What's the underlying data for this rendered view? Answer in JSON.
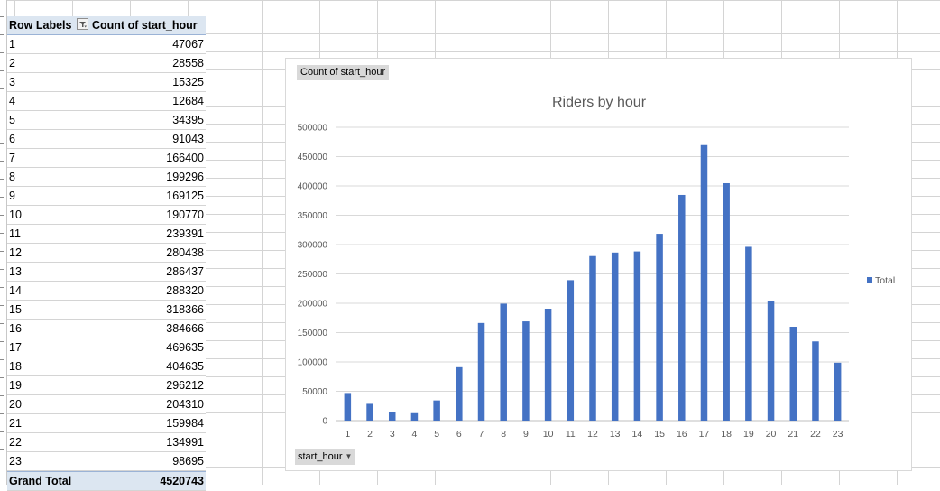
{
  "pivot": {
    "header": {
      "row_labels": "Row Labels",
      "count_label": "Count of start_hour"
    },
    "rows": [
      {
        "label": "1",
        "value": "47067"
      },
      {
        "label": "2",
        "value": "28558"
      },
      {
        "label": "3",
        "value": "15325"
      },
      {
        "label": "4",
        "value": "12684"
      },
      {
        "label": "5",
        "value": "34395"
      },
      {
        "label": "6",
        "value": "91043"
      },
      {
        "label": "7",
        "value": "166400"
      },
      {
        "label": "8",
        "value": "199296"
      },
      {
        "label": "9",
        "value": "169125"
      },
      {
        "label": "10",
        "value": "190770"
      },
      {
        "label": "11",
        "value": "239391"
      },
      {
        "label": "12",
        "value": "280438"
      },
      {
        "label": "13",
        "value": "286437"
      },
      {
        "label": "14",
        "value": "288320"
      },
      {
        "label": "15",
        "value": "318366"
      },
      {
        "label": "16",
        "value": "384666"
      },
      {
        "label": "17",
        "value": "469635"
      },
      {
        "label": "18",
        "value": "404635"
      },
      {
        "label": "19",
        "value": "296212"
      },
      {
        "label": "20",
        "value": "204310"
      },
      {
        "label": "21",
        "value": "159984"
      },
      {
        "label": "22",
        "value": "134991"
      },
      {
        "label": "23",
        "value": "98695"
      }
    ],
    "grand_total": {
      "label": "Grand Total",
      "value": "4520743"
    }
  },
  "chart": {
    "field_button": "Count of start_hour",
    "axis_field_button": "start_hour"
  },
  "chart_data": {
    "type": "bar",
    "title": "Riders by hour",
    "categories": [
      "1",
      "2",
      "3",
      "4",
      "5",
      "6",
      "7",
      "8",
      "9",
      "10",
      "11",
      "12",
      "13",
      "14",
      "15",
      "16",
      "17",
      "18",
      "19",
      "20",
      "21",
      "22",
      "23"
    ],
    "series": [
      {
        "name": "Total",
        "values": [
          47067,
          28558,
          15325,
          12684,
          34395,
          91043,
          166400,
          199296,
          169125,
          190770,
          239391,
          280438,
          286437,
          288320,
          318366,
          384666,
          469635,
          404635,
          296212,
          204310,
          159984,
          134991,
          98695
        ],
        "color": "#4472c4"
      }
    ],
    "ylim": [
      0,
      500000
    ],
    "yticks": [
      "0",
      "50000",
      "100000",
      "150000",
      "200000",
      "250000",
      "300000",
      "350000",
      "400000",
      "450000",
      "500000"
    ],
    "grid": true,
    "legend_position": "right"
  }
}
